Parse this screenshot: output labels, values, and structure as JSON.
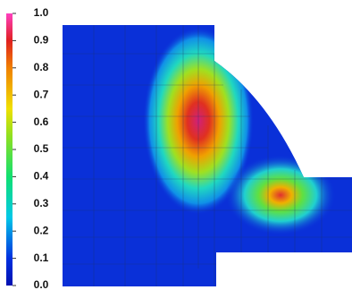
{
  "chart_data": {
    "type": "contour",
    "clim": [
      0,
      1
    ],
    "cticks": [
      {
        "value": 0,
        "label": "0.0"
      },
      0.1,
      0.2,
      0.3,
      0.4,
      0.5,
      0.6,
      0.7,
      0.8,
      0.9,
      {
        "value": 1,
        "label": "1.0"
      }
    ]
  }
}
